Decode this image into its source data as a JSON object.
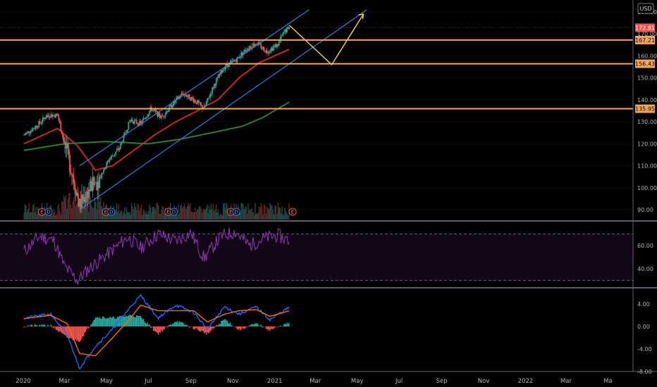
{
  "chart_data": {
    "type": "candlestick",
    "currency": "USD",
    "x_axis_labels": [
      "2020",
      "Mar",
      "May",
      "Jul",
      "Sep",
      "Nov",
      "2021",
      "Mar",
      "May",
      "Jul",
      "Sep",
      "Nov",
      "2022",
      "Mar",
      "Ma"
    ],
    "price_axis": {
      "ticks": [
        "90.00",
        "100.00",
        "110.00",
        "120.00",
        "130.00",
        "140.00",
        "150.00",
        "160.00",
        "170.00",
        "180.00"
      ],
      "range": [
        85,
        182
      ]
    },
    "current_price": "172.81",
    "horizontal_levels": [
      {
        "label": "167.21",
        "value": 167.21
      },
      {
        "label": "156.43",
        "value": 156.43
      },
      {
        "label": "135.95",
        "value": 135.95
      }
    ],
    "earnings_markers": [
      "E",
      "E",
      "E",
      "E",
      "E"
    ],
    "dividend_markers": [
      "D",
      "D",
      "D",
      "D"
    ],
    "close_series": {
      "dates": [
        "2020-01-02",
        "2020-01-20",
        "2020-02-05",
        "2020-02-20",
        "2020-03-01",
        "2020-03-12",
        "2020-03-23",
        "2020-04-05",
        "2020-04-20",
        "2020-05-05",
        "2020-05-20",
        "2020-06-05",
        "2020-06-20",
        "2020-07-05",
        "2020-07-20",
        "2020-08-05",
        "2020-08-20",
        "2020-09-05",
        "2020-09-20",
        "2020-10-05",
        "2020-10-20",
        "2020-11-05",
        "2020-11-20",
        "2020-12-05",
        "2020-12-20",
        "2021-01-05",
        "2021-01-15",
        "2021-01-22"
      ],
      "values": [
        124,
        128,
        133,
        133,
        120,
        107,
        92,
        99,
        104,
        113,
        118,
        131,
        129,
        136,
        132,
        138,
        143,
        140,
        136,
        147,
        155,
        158,
        163,
        166,
        162,
        165,
        171,
        172.81
      ]
    },
    "moving_averages": [
      {
        "dates": [
          "2020-01-02",
          "2020-02-20",
          "2020-03-20",
          "2020-04-15",
          "2020-05-10",
          "2020-06-10",
          "2020-07-10",
          "2020-08-10",
          "2020-09-10",
          "2020-10-10",
          "2020-11-10",
          "2020-12-10",
          "2021-01-22"
        ],
        "values": [
          120,
          127,
          119,
          108,
          110,
          117,
          124,
          130,
          135,
          140,
          150,
          157,
          163
        ]
      },
      {
        "dates": [
          "2020-01-02",
          "2020-03-01",
          "2020-05-01",
          "2020-07-01",
          "2020-08-15",
          "2020-10-01",
          "2020-11-15",
          "2020-12-15",
          "2021-01-22"
        ],
        "values": [
          117,
          120,
          121,
          120,
          122,
          125,
          128,
          132,
          139
        ]
      }
    ],
    "trend_channel": {
      "upper": {
        "from": {
          "date": "2020-03-23",
          "price": 110
        },
        "to": {
          "date": "2021-02-20",
          "price": 181
        }
      },
      "lower": {
        "from": {
          "date": "2020-03-23",
          "price": 90
        },
        "to": {
          "date": "2021-05-15",
          "price": 181
        }
      }
    },
    "projection": {
      "dates": [
        "2021-01-22",
        "2021-03-25",
        "2021-05-10"
      ],
      "values": [
        174,
        156,
        179
      ]
    },
    "rsi": {
      "ticks": [
        "60.00",
        "40.00"
      ],
      "range": [
        22,
        82
      ],
      "band": [
        70,
        30
      ],
      "dates": [
        "2020-01-02",
        "2020-01-25",
        "2020-02-15",
        "2020-03-01",
        "2020-03-20",
        "2020-04-05",
        "2020-05-01",
        "2020-06-01",
        "2020-06-20",
        "2020-07-15",
        "2020-08-10",
        "2020-09-01",
        "2020-09-20",
        "2020-10-15",
        "2020-11-05",
        "2020-11-25",
        "2020-12-15",
        "2021-01-05",
        "2021-01-22"
      ],
      "values": [
        55,
        68,
        64,
        42,
        30,
        40,
        52,
        67,
        58,
        70,
        64,
        71,
        49,
        68,
        72,
        60,
        66,
        69,
        64
      ]
    },
    "macd": {
      "ticks": [
        "4.00",
        "0.00",
        "-4.00",
        "-8.00"
      ],
      "range": [
        -8.5,
        6.5
      ],
      "dates": [
        "2020-01-02",
        "2020-02-10",
        "2020-03-05",
        "2020-03-23",
        "2020-04-15",
        "2020-05-10",
        "2020-06-05",
        "2020-06-20",
        "2020-07-15",
        "2020-08-10",
        "2020-09-05",
        "2020-09-25",
        "2020-10-20",
        "2020-11-10",
        "2020-12-05",
        "2020-12-25",
        "2021-01-22"
      ],
      "macd": [
        1.5,
        2.2,
        -1.5,
        -7.4,
        -3.5,
        -0.5,
        3.5,
        5.5,
        1.5,
        3.8,
        2.5,
        -0.5,
        3.5,
        2.2,
        3.5,
        1.2,
        3.4
      ],
      "signal": [
        1.4,
        2.0,
        0.5,
        -4.8,
        -5.2,
        -2.0,
        1.5,
        3.8,
        2.8,
        2.8,
        2.8,
        0.8,
        2.2,
        2.8,
        3.0,
        1.8,
        2.8
      ]
    }
  }
}
